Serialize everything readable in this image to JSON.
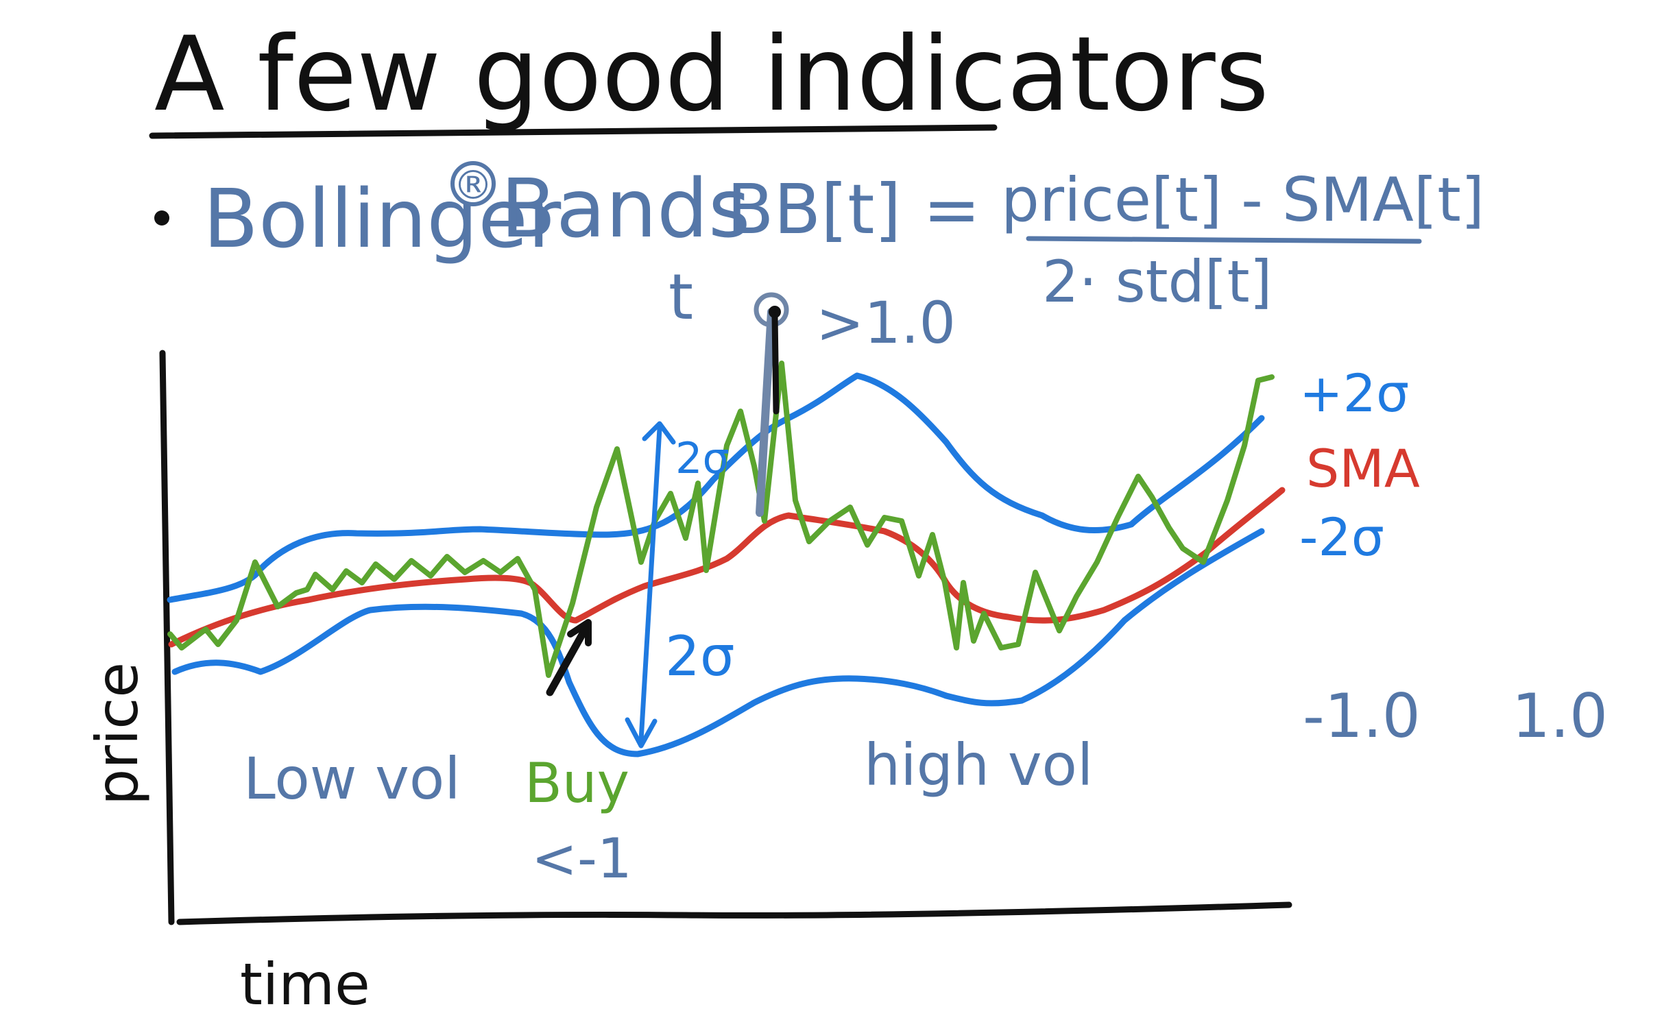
{
  "title": "A few good indicators",
  "bullet": {
    "name": "Bollinger",
    "registered": "®",
    "name_suffix": "Bands",
    "formula_lhs": "BB[t] =",
    "numerator": "price[t] - SMA[t]",
    "denominator": "2· std[t]"
  },
  "annotations": {
    "t_label": "t",
    "gt_label": ">1.0",
    "two_sigma_upper": "2σ",
    "two_sigma_lower": "2σ",
    "low_vol": "Low vol",
    "high_vol": "high vol",
    "buy": "Buy",
    "lt_label": "<-1"
  },
  "legend": {
    "upper": "+2σ",
    "sma": "SMA",
    "lower": "-2σ"
  },
  "scale": {
    "neg": "-1.0",
    "pos": "1.0"
  },
  "axes": {
    "x_label": "time",
    "y_label": "price"
  },
  "colors": {
    "ink": "#111111",
    "band": "#1f7ae0",
    "sma": "#d63a2f",
    "price": "#5ba52f",
    "text_blue": "#5577a8",
    "gray": "#6f86a8"
  }
}
